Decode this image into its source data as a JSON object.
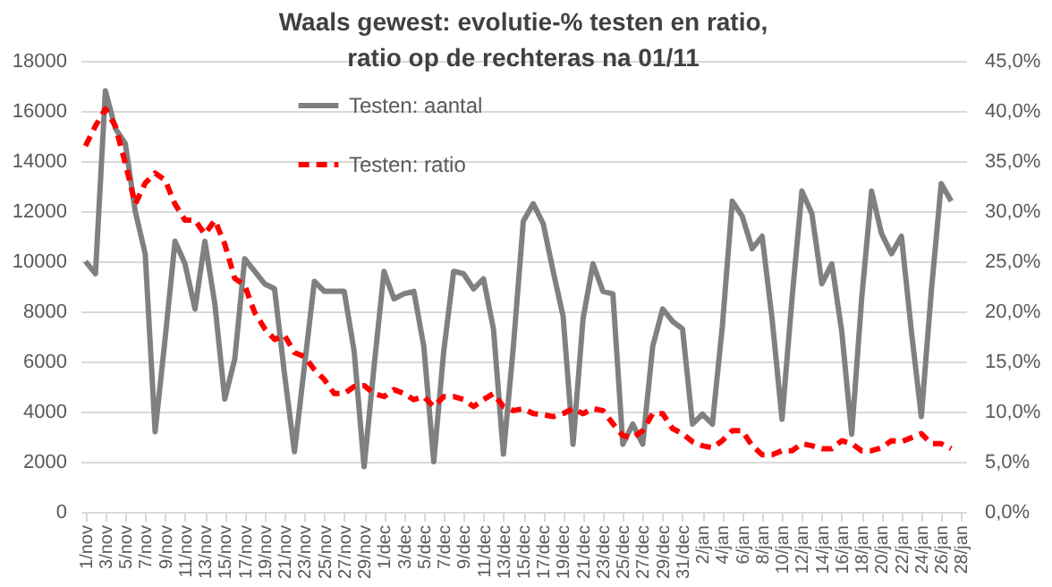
{
  "chart_data": {
    "type": "line",
    "title": "Waals gewest: evolutie-% testen en ratio,\nratio op de rechteras na 01/11",
    "categories": [
      "1/nov",
      null,
      "3/nov",
      null,
      "5/nov",
      null,
      "7/nov",
      null,
      "9/nov",
      null,
      "11/nov",
      null,
      "13/nov",
      null,
      "15/nov",
      null,
      "17/nov",
      null,
      "19/nov",
      null,
      "21/nov",
      null,
      "23/nov",
      null,
      "25/nov",
      null,
      "27/nov",
      null,
      "29/nov",
      null,
      "1/dec",
      null,
      "3/dec",
      null,
      "5/dec",
      null,
      "7/dec",
      null,
      "9/dec",
      null,
      "11/dec",
      null,
      "13/dec",
      null,
      "15/dec",
      null,
      "17/dec",
      null,
      "19/dec",
      null,
      "21/dec",
      null,
      "23/dec",
      null,
      "25/dec",
      null,
      "27/dec",
      null,
      "29/dec",
      null,
      "31/dec",
      null,
      "2/jan",
      null,
      "4/jan",
      null,
      "6/jan",
      null,
      "8/jan",
      null,
      "10/jan",
      null,
      "12/jan",
      null,
      "14/jan",
      null,
      "16/jan",
      null,
      "18/jan",
      null,
      "20/jan",
      null,
      "22/jan",
      null,
      "24/jan",
      null,
      "26/jan",
      null,
      "28/jan"
    ],
    "series": [
      {
        "name": "Testen: aantal",
        "color": "#808080",
        "line_style": "solid",
        "values": [
          10000,
          9500,
          16800,
          15300,
          14700,
          12000,
          10300,
          3200,
          6900,
          10800,
          9900,
          8100,
          10800,
          8300,
          4500,
          6100,
          10100,
          9600,
          9100,
          8900,
          5500,
          2400,
          5800,
          9200,
          8800,
          8800,
          8800,
          6400,
          1800,
          5800,
          9600,
          8500,
          8700,
          8800,
          6600,
          2000,
          6400,
          9600,
          9500,
          8900,
          9300,
          7300,
          2300,
          6600,
          11600,
          12300,
          11500,
          9600,
          7800,
          2700,
          7700,
          9900,
          8800,
          8700,
          2700,
          3500,
          2700,
          6600,
          8100,
          7600,
          7300,
          3500,
          3900,
          3500,
          7400,
          12400,
          11800,
          10500,
          11000,
          7700,
          3700,
          8500,
          12800,
          11900,
          9100,
          9900,
          7200,
          3100,
          8500,
          12800,
          11100,
          10300,
          11000,
          7200,
          3800,
          8800,
          13100,
          12400,
          null
        ]
      },
      {
        "name": "Testen: ratio",
        "color": "#ff0000",
        "line_style": "dashed",
        "axis": "y2",
        "values": [
          36.5,
          38.5,
          40.2,
          38.5,
          34.8,
          30.7,
          32.8,
          33.8,
          33.1,
          30.7,
          29.1,
          29.1,
          27.7,
          29.1,
          26.7,
          23.3,
          22.6,
          19.9,
          18.3,
          17.2,
          17.6,
          15.9,
          15.5,
          14.2,
          13.2,
          11.8,
          11.8,
          12.5,
          12.6,
          11.8,
          11.5,
          12.2,
          11.8,
          11.2,
          11.5,
          10.5,
          11.5,
          11.5,
          11.2,
          10.5,
          11.2,
          11.8,
          10.5,
          10.1,
          10.3,
          9.8,
          9.7,
          9.5,
          9.8,
          10.3,
          9.8,
          10.3,
          10.1,
          8.8,
          7.6,
          7.4,
          8.1,
          9.8,
          9.8,
          8.3,
          7.8,
          7.0,
          6.6,
          6.4,
          7.1,
          8.1,
          8.1,
          6.6,
          5.7,
          5.7,
          6.1,
          6.1,
          6.8,
          6.6,
          6.3,
          6.3,
          7.1,
          6.8,
          6.1,
          6.1,
          6.4,
          7.1,
          7.0,
          7.4,
          7.8,
          6.8,
          6.8,
          6.3,
          null
        ]
      }
    ],
    "ylim": [
      0,
      18000
    ],
    "yticks": [
      0,
      2000,
      4000,
      6000,
      8000,
      10000,
      12000,
      14000,
      16000,
      18000
    ],
    "y2lim": [
      0,
      45
    ],
    "y2ticks": [
      {
        "value": 0,
        "label": "0,0%"
      },
      {
        "value": 5,
        "label": "5,0%"
      },
      {
        "value": 10,
        "label": "10,0%"
      },
      {
        "value": 15,
        "label": "15,0%"
      },
      {
        "value": 20,
        "label": "20,0%"
      },
      {
        "value": 25,
        "label": "25,0%"
      },
      {
        "value": 30,
        "label": "30,0%"
      },
      {
        "value": 35,
        "label": "35,0%"
      },
      {
        "value": 40,
        "label": "40,0%"
      },
      {
        "value": 45,
        "label": "45,0%"
      }
    ],
    "grid": "y",
    "legend": "top",
    "marker": "none"
  }
}
